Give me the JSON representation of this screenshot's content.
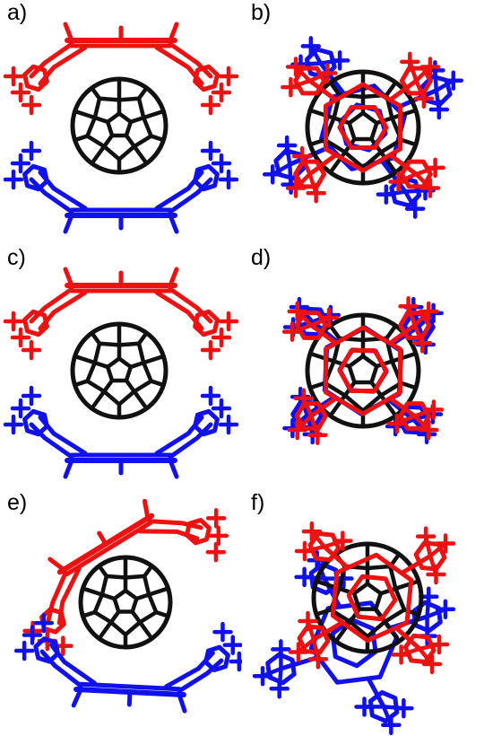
{
  "figure": {
    "panels": [
      {
        "label": "a)",
        "view": "side"
      },
      {
        "label": "b)",
        "view": "top"
      },
      {
        "label": "c)",
        "view": "side"
      },
      {
        "label": "d)",
        "view": "top"
      },
      {
        "label": "e)",
        "view": "side"
      },
      {
        "label": "f)",
        "view": "top"
      }
    ]
  },
  "colors": {
    "fullerene": "#111111",
    "host_upper": "#ee1111",
    "host_lower": "#1111ee"
  }
}
